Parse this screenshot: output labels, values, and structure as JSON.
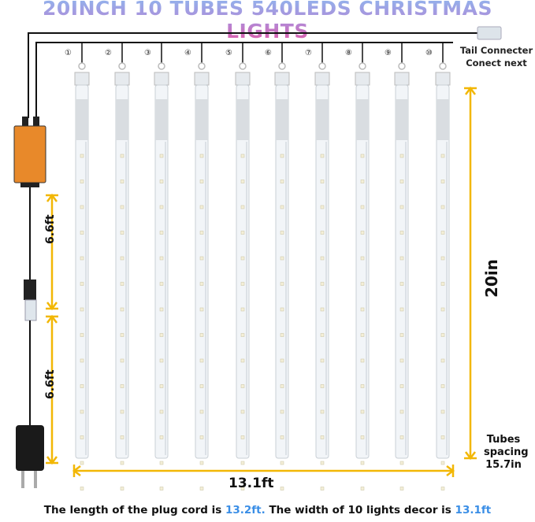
{
  "title": "20INCH 10 TUBES 540LEDS CHRISTMAS LIGHTS",
  "tail_connector": {
    "line1": "Tail Connecter",
    "line2": "Conect next"
  },
  "tube_numbers": [
    "①",
    "②",
    "③",
    "④",
    "⑤",
    "⑥",
    "⑦",
    "⑧",
    "⑨",
    "⑩"
  ],
  "dimensions": {
    "cord_segment_1": "6.6ft",
    "cord_segment_2": "6.6ft",
    "tube_length": "20in",
    "total_width": "13.1ft",
    "spacing_label": "Tubes spacing",
    "spacing_value": "15.7in"
  },
  "footer": {
    "part1": "The length of the plug cord is ",
    "value1": "13.2ft.",
    "part2": " The width of 10 lights decor is ",
    "value2": "13.1ft"
  },
  "colors": {
    "accent_blue": "#3a8ee6",
    "dimension_yellow": "#f2b705",
    "adapter_orange": "#e8892a"
  }
}
